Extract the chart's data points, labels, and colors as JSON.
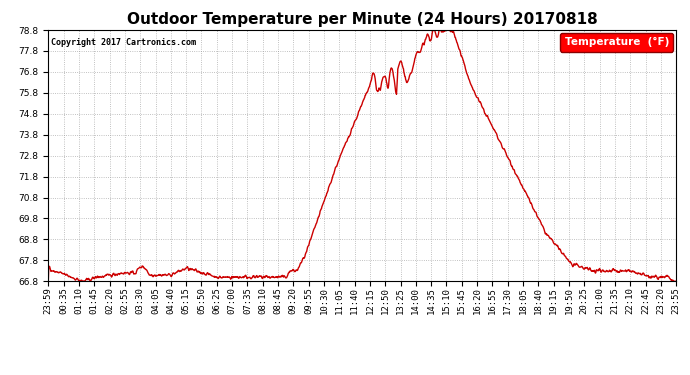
{
  "title": "Outdoor Temperature per Minute (24 Hours) 20170818",
  "copyright_text": "Copyright 2017 Cartronics.com",
  "legend_label": "Temperature  (°F)",
  "line_color": "#cc0000",
  "background_color": "#ffffff",
  "plot_bg_color": "#ffffff",
  "grid_color": "#999999",
  "ylim": [
    66.8,
    78.8
  ],
  "yticks": [
    66.8,
    67.8,
    68.8,
    69.8,
    70.8,
    71.8,
    72.8,
    73.8,
    74.8,
    75.8,
    76.8,
    77.8,
    78.8
  ],
  "xtick_labels": [
    "23:59",
    "00:35",
    "01:10",
    "01:45",
    "02:20",
    "02:55",
    "03:30",
    "04:05",
    "04:40",
    "05:15",
    "05:50",
    "06:25",
    "07:00",
    "07:35",
    "08:10",
    "08:45",
    "09:20",
    "09:55",
    "10:30",
    "11:05",
    "11:40",
    "12:15",
    "12:50",
    "13:25",
    "14:00",
    "14:35",
    "15:10",
    "15:45",
    "16:20",
    "16:55",
    "17:30",
    "18:05",
    "18:40",
    "19:15",
    "19:50",
    "20:25",
    "21:00",
    "21:35",
    "22:10",
    "22:45",
    "23:20",
    "23:55"
  ],
  "title_fontsize": 11,
  "tick_fontsize": 6.5,
  "line_width": 1.0
}
